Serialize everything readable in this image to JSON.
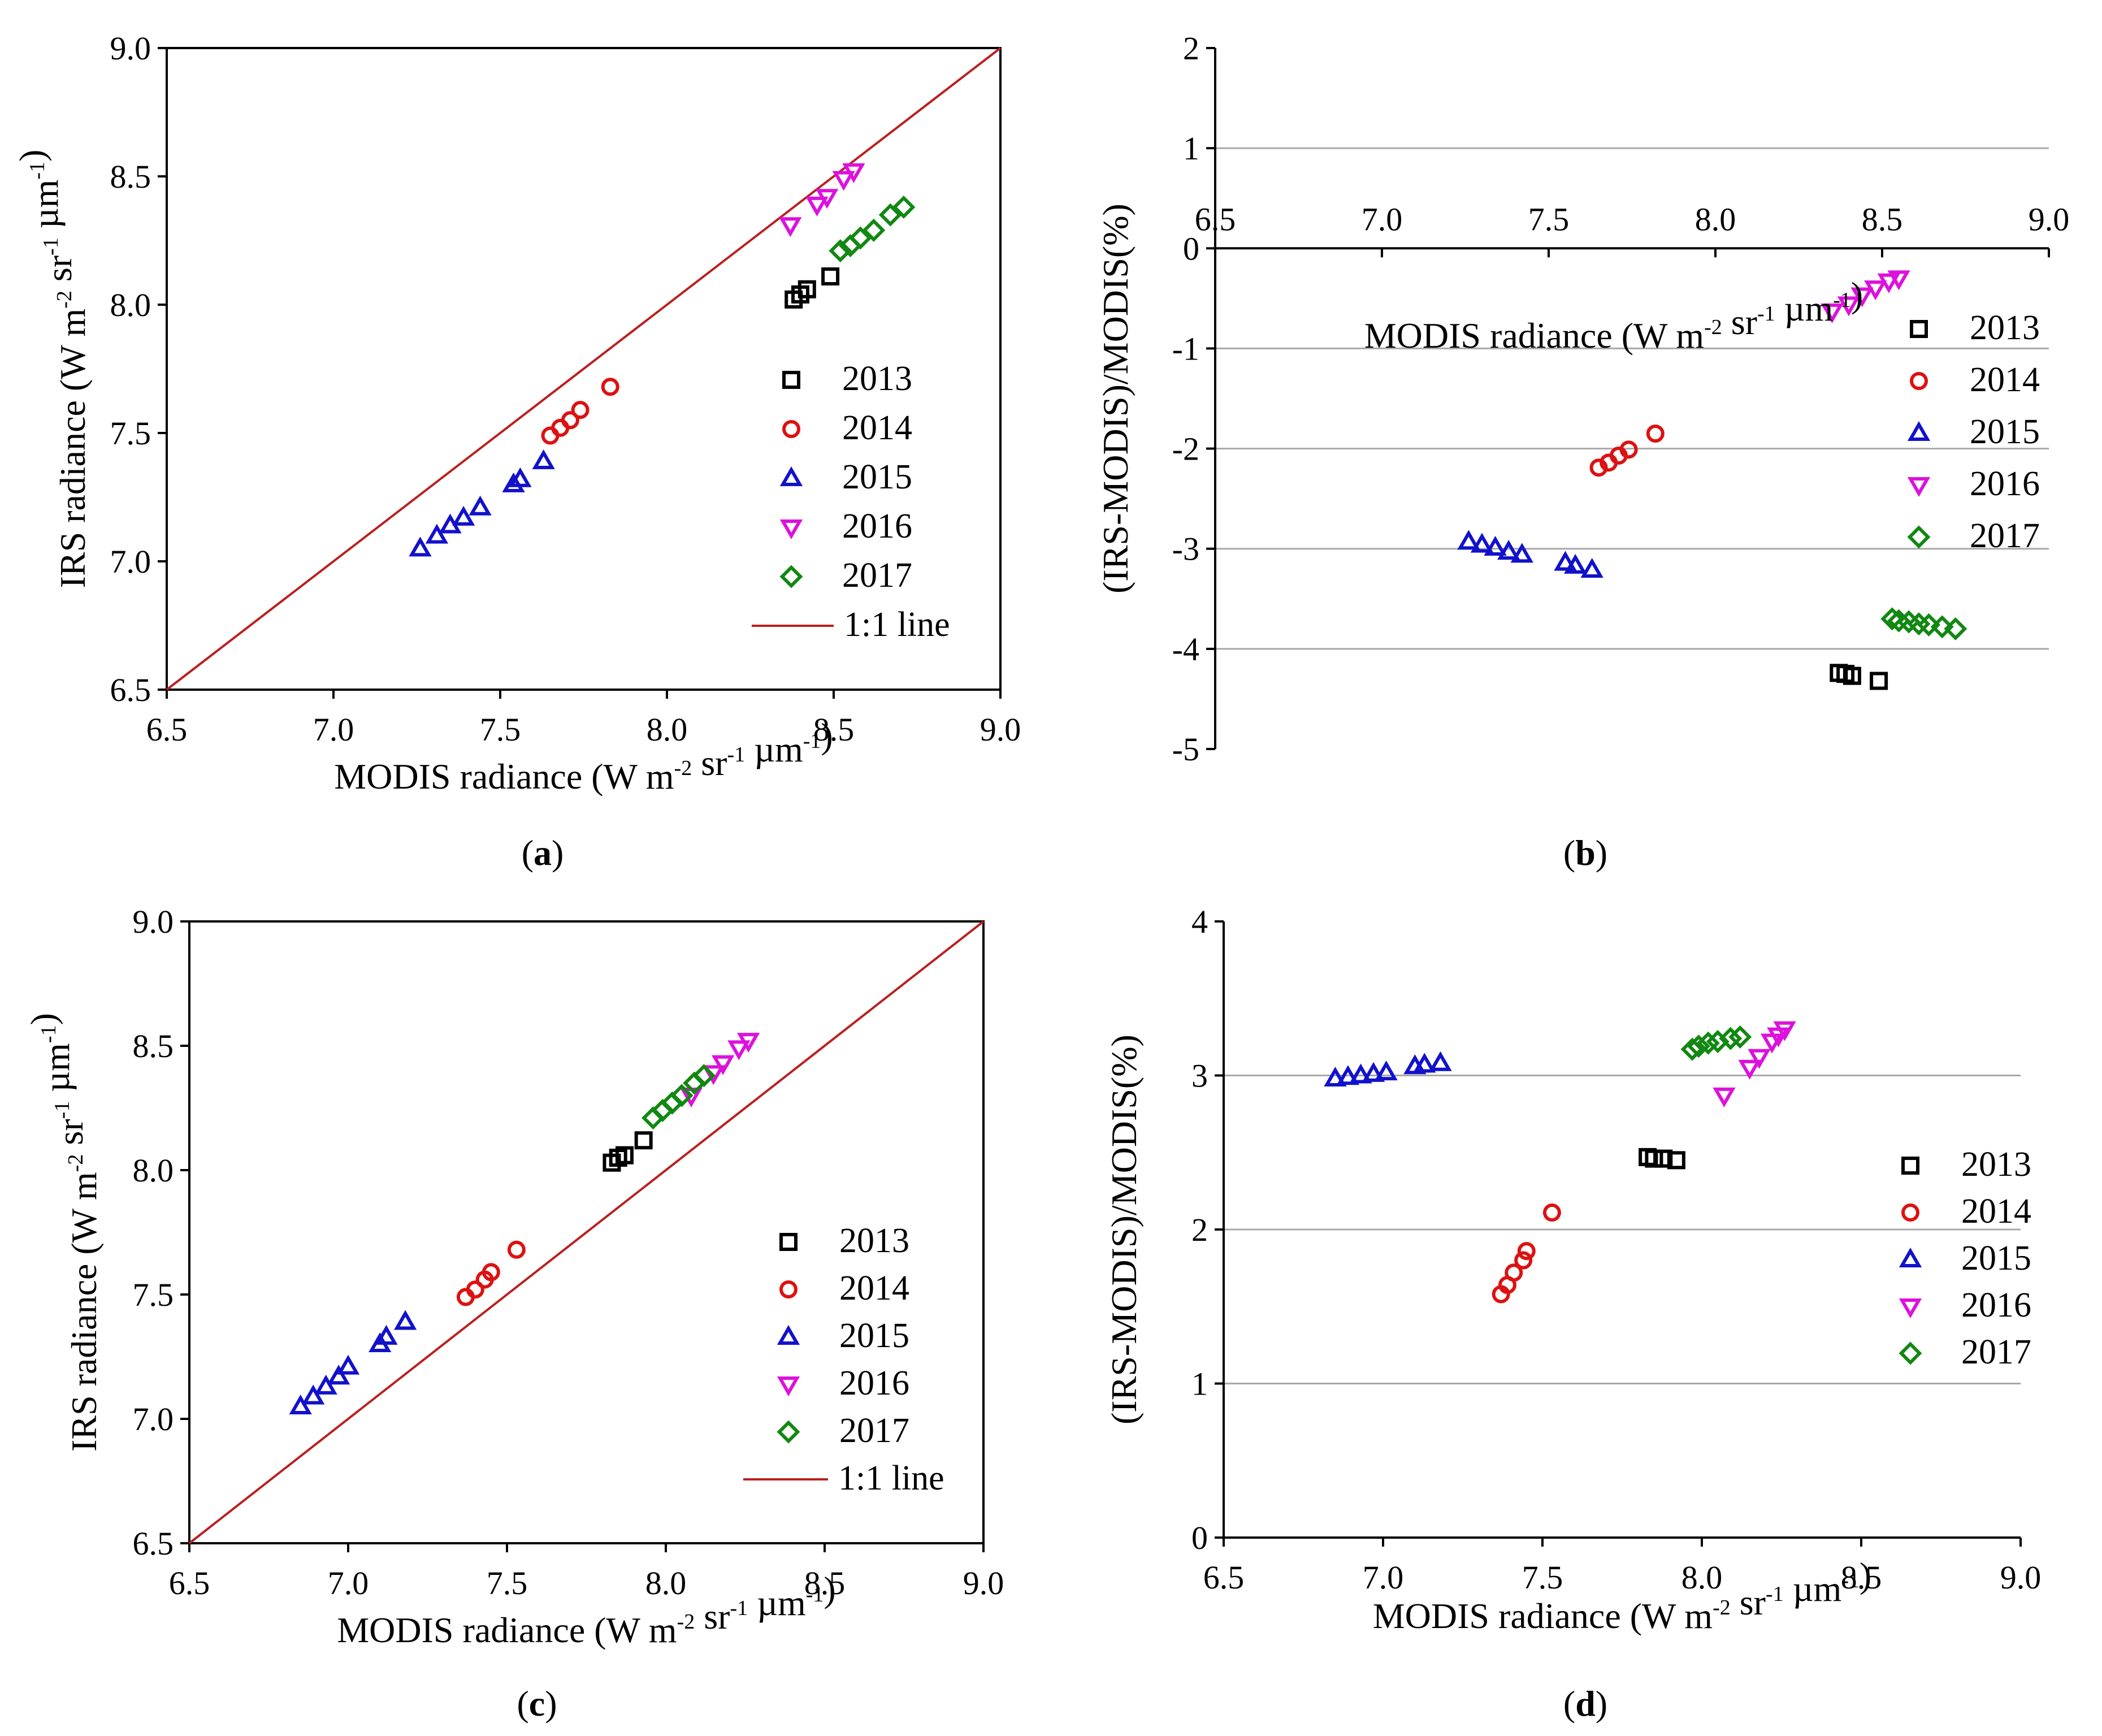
{
  "colors": {
    "2013": "#000000",
    "2014": "#dd1111",
    "2015": "#1111cc",
    "2016": "#dd11dd",
    "2017": "#118811",
    "line": "#bb1f1f"
  },
  "chart_data": [
    {
      "type": "scatter",
      "panel_label": "a",
      "xlabel": {
        "pre": "MODIS radiance (W m",
        "sup1": "-2",
        "mid": " sr",
        "sup2": "-1",
        "mid2": " µm",
        "sup3": "-1",
        "post": ")"
      },
      "ylabel": {
        "pre": "IRS radiance  (W m",
        "sup1": "-2",
        "mid": " sr",
        "sup2": "-1",
        "mid2": " µm",
        "sup3": "-1",
        "post": ")"
      },
      "xlim": [
        6.5,
        9.0
      ],
      "ylim": [
        6.5,
        9.0
      ],
      "xticks": [
        "6.5",
        "7.0",
        "7.5",
        "8.0",
        "8.5",
        "9.0"
      ],
      "yticks": [
        "6.5",
        "7.0",
        "7.5",
        "8.0",
        "8.5",
        "9.0"
      ],
      "series": [
        {
          "name": "2013",
          "marker": "square",
          "x": [
            8.38,
            8.4,
            8.42,
            8.49
          ],
          "y": [
            8.02,
            8.04,
            8.06,
            8.11
          ]
        },
        {
          "name": "2014",
          "marker": "circle",
          "x": [
            7.65,
            7.68,
            7.71,
            7.74,
            7.83
          ],
          "y": [
            7.49,
            7.52,
            7.55,
            7.59,
            7.68
          ]
        },
        {
          "name": "2015",
          "marker": "triangle-up",
          "x": [
            7.26,
            7.31,
            7.35,
            7.39,
            7.44,
            7.54,
            7.56,
            7.63
          ],
          "y": [
            7.05,
            7.1,
            7.14,
            7.17,
            7.21,
            7.3,
            7.32,
            7.39
          ]
        },
        {
          "name": "2016",
          "marker": "triangle-down",
          "x": [
            8.37,
            8.45,
            8.48,
            8.53,
            8.56
          ],
          "y": [
            8.31,
            8.39,
            8.42,
            8.49,
            8.52
          ]
        },
        {
          "name": "2017",
          "marker": "diamond",
          "x": [
            8.52,
            8.55,
            8.58,
            8.62,
            8.67,
            8.71
          ],
          "y": [
            8.21,
            8.23,
            8.26,
            8.29,
            8.35,
            8.38
          ]
        }
      ],
      "legend": [
        "2013",
        "2014",
        "2015",
        "2016",
        "2017",
        "1:1 line"
      ],
      "has_unity_line": true
    },
    {
      "type": "scatter",
      "panel_label": "b",
      "xlabel": {
        "pre": "MODIS radiance (W m",
        "sup1": "-2",
        "mid": " sr",
        "sup2": "-1",
        "mid2": " µm",
        "sup3": "-1",
        "post": ")"
      },
      "ylabel": {
        "pre": "(IRS-MODIS)/MODIS(%)",
        "sup1": "",
        "mid": "",
        "sup2": "",
        "mid2": "",
        "sup3": "",
        "post": ""
      },
      "xlim": [
        6.5,
        9.0
      ],
      "ylim": [
        -5,
        2
      ],
      "xticks": [
        "6.5",
        "7.0",
        "7.5",
        "8.0",
        "8.5",
        "9.0"
      ],
      "yticks": [
        "-5",
        "-4",
        "-3",
        "-2",
        "-1",
        "0",
        "1",
        "2"
      ],
      "gridlines_y": [
        1,
        -1,
        -2,
        -3,
        -4
      ],
      "series": [
        {
          "name": "2013",
          "marker": "square",
          "x": [
            8.37,
            8.39,
            8.41,
            8.49
          ],
          "y": [
            -4.24,
            -4.25,
            -4.27,
            -4.32
          ]
        },
        {
          "name": "2014",
          "marker": "circle",
          "x": [
            7.65,
            7.68,
            7.71,
            7.74,
            7.82
          ],
          "y": [
            -2.19,
            -2.14,
            -2.07,
            -2.01,
            -1.85
          ]
        },
        {
          "name": "2015",
          "marker": "triangle-up",
          "x": [
            7.26,
            7.3,
            7.34,
            7.38,
            7.42,
            7.55,
            7.58,
            7.63
          ],
          "y": [
            -2.93,
            -2.96,
            -2.99,
            -3.03,
            -3.06,
            -3.14,
            -3.17,
            -3.21
          ]
        },
        {
          "name": "2016",
          "marker": "triangle-down",
          "x": [
            8.35,
            8.4,
            8.44,
            8.48,
            8.52,
            8.55
          ],
          "y": [
            -0.63,
            -0.56,
            -0.47,
            -0.4,
            -0.33,
            -0.3
          ]
        },
        {
          "name": "2017",
          "marker": "diamond",
          "x": [
            8.53,
            8.55,
            8.58,
            8.61,
            8.64,
            8.68,
            8.72
          ],
          "y": [
            -3.7,
            -3.72,
            -3.73,
            -3.75,
            -3.76,
            -3.78,
            -3.8
          ]
        }
      ],
      "legend": [
        "2013",
        "2014",
        "2015",
        "2016",
        "2017"
      ],
      "has_unity_line": false
    },
    {
      "type": "scatter",
      "panel_label": "c",
      "xlabel": {
        "pre": "MODIS radiance (W m",
        "sup1": "-2",
        "mid": " sr",
        "sup2": "-1",
        "mid2": " µm",
        "sup3": "-1",
        "post": ")"
      },
      "ylabel": {
        "pre": "IRS radiance (W m",
        "sup1": "-2",
        "mid": " sr",
        "sup2": "-1",
        "mid2": " µm",
        "sup3": "-1",
        "post": ")"
      },
      "xlim": [
        6.5,
        9.0
      ],
      "ylim": [
        6.5,
        9.0
      ],
      "xticks": [
        "6.5",
        "7.0",
        "7.5",
        "8.0",
        "8.5",
        "9.0"
      ],
      "yticks": [
        "6.5",
        "7.0",
        "7.5",
        "8.0",
        "8.5",
        "9.0"
      ],
      "series": [
        {
          "name": "2013",
          "marker": "square",
          "x": [
            7.83,
            7.85,
            7.87,
            7.93
          ],
          "y": [
            8.03,
            8.05,
            8.06,
            8.12
          ]
        },
        {
          "name": "2014",
          "marker": "circle",
          "x": [
            7.37,
            7.4,
            7.43,
            7.45,
            7.53
          ],
          "y": [
            7.49,
            7.52,
            7.56,
            7.59,
            7.68
          ]
        },
        {
          "name": "2015",
          "marker": "triangle-up",
          "x": [
            6.85,
            6.89,
            6.93,
            6.97,
            7.0,
            7.1,
            7.12,
            7.18
          ],
          "y": [
            7.05,
            7.09,
            7.13,
            7.17,
            7.21,
            7.3,
            7.33,
            7.39
          ]
        },
        {
          "name": "2016",
          "marker": "triangle-down",
          "x": [
            8.08,
            8.15,
            8.18,
            8.23,
            8.26
          ],
          "y": [
            8.3,
            8.39,
            8.43,
            8.49,
            8.52
          ]
        },
        {
          "name": "2017",
          "marker": "diamond",
          "x": [
            7.96,
            7.99,
            8.02,
            8.05,
            8.09,
            8.12
          ],
          "y": [
            8.21,
            8.24,
            8.27,
            8.3,
            8.35,
            8.38
          ]
        }
      ],
      "legend": [
        "2013",
        "2014",
        "2015",
        "2016",
        "2017",
        "1:1 line"
      ],
      "has_unity_line": true
    },
    {
      "type": "scatter",
      "panel_label": "d",
      "xlabel": {
        "pre": "MODIS radiance (W m",
        "sup1": "-2",
        "mid": " sr",
        "sup2": "-1",
        "mid2": " µm",
        "sup3": "-1",
        "post": ")"
      },
      "ylabel": {
        "pre": "(IRS-MODIS)/MODIS(%)",
        "sup1": "",
        "mid": "",
        "sup2": "",
        "mid2": "",
        "sup3": "",
        "post": ""
      },
      "xlim": [
        6.5,
        9.0
      ],
      "ylim": [
        0,
        4
      ],
      "xticks": [
        "6.5",
        "7.0",
        "7.5",
        "8.0",
        "8.5",
        "9.0"
      ],
      "yticks": [
        "0",
        "1",
        "2",
        "3",
        "4"
      ],
      "gridlines_y": [
        1,
        2,
        3
      ],
      "series": [
        {
          "name": "2013",
          "marker": "square",
          "x": [
            7.83,
            7.85,
            7.88,
            7.92
          ],
          "y": [
            2.47,
            2.46,
            2.46,
            2.45
          ]
        },
        {
          "name": "2014",
          "marker": "circle",
          "x": [
            7.37,
            7.39,
            7.41,
            7.44,
            7.45,
            7.53
          ],
          "y": [
            1.58,
            1.64,
            1.72,
            1.8,
            1.86,
            2.11
          ]
        },
        {
          "name": "2015",
          "marker": "triangle-up",
          "x": [
            6.85,
            6.89,
            6.93,
            6.97,
            7.01,
            7.1,
            7.13,
            7.18
          ],
          "y": [
            2.98,
            2.99,
            3.0,
            3.01,
            3.02,
            3.06,
            3.07,
            3.08
          ]
        },
        {
          "name": "2016",
          "marker": "triangle-down",
          "x": [
            8.07,
            8.15,
            8.18,
            8.22,
            8.24,
            8.26
          ],
          "y": [
            2.87,
            3.05,
            3.12,
            3.22,
            3.26,
            3.3
          ]
        },
        {
          "name": "2017",
          "marker": "diamond",
          "x": [
            7.97,
            7.99,
            8.02,
            8.05,
            8.09,
            8.12
          ],
          "y": [
            3.17,
            3.19,
            3.21,
            3.22,
            3.24,
            3.25
          ]
        }
      ],
      "legend": [
        "2013",
        "2014",
        "2015",
        "2016",
        "2017"
      ],
      "has_unity_line": false
    }
  ]
}
